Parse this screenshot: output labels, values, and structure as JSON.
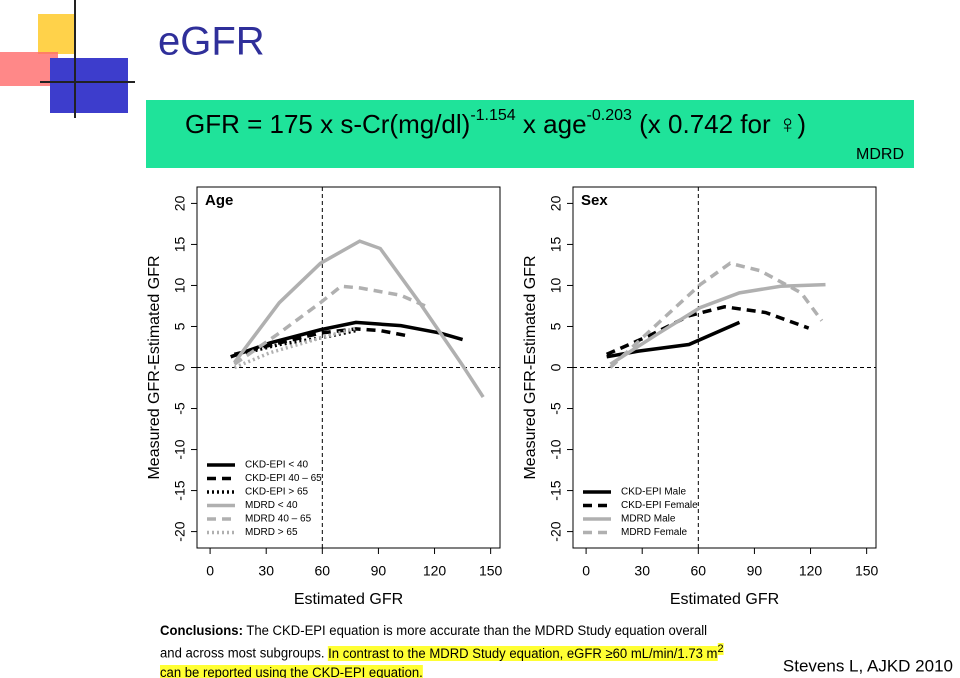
{
  "title": "eGFR",
  "formula": {
    "parts": [
      "GFR = 175 x s-Cr(mg/dl)",
      "-1.154",
      " x age",
      "-0.203",
      " (x 0.742 for ♀)"
    ],
    "note": "MDRD"
  },
  "chart_data": [
    {
      "type": "line",
      "panel_label": "Age",
      "x_label": "Estimated GFR",
      "y_label": "Measured GFR-Estimated GFR",
      "xlim": [
        -7,
        155
      ],
      "ylim": [
        -22,
        22
      ],
      "xticks": [
        0,
        30,
        60,
        90,
        120,
        150
      ],
      "yticks": [
        -20,
        -15,
        -10,
        -5,
        0,
        5,
        10,
        15,
        20
      ],
      "reference_lines": {
        "x": 60,
        "y": 0
      },
      "legend": "lower left",
      "series": [
        {
          "name": "CKD-EPI < 40",
          "color": "#000000",
          "line_style": "solid",
          "x": [
            11,
            32,
            59,
            78,
            102,
            123,
            135
          ],
          "values": [
            1.3,
            3,
            4.6,
            5.5,
            5.1,
            4.2,
            3.4
          ]
        },
        {
          "name": "CKD-EPI 40 – 65",
          "color": "#000000",
          "line_style": "dashed",
          "x": [
            13,
            37,
            59,
            78,
            91,
            107
          ],
          "values": [
            1.6,
            3,
            4.2,
            4.7,
            4.5,
            3.8
          ]
        },
        {
          "name": "CKD-EPI > 65",
          "color": "#000000",
          "line_style": "dotted",
          "x": [
            19,
            37,
            59,
            78
          ],
          "values": [
            1.8,
            2.8,
            3.6,
            4.5
          ]
        },
        {
          "name": "MDRD < 40",
          "color": "#b0b0b0",
          "line_style": "solid",
          "x": [
            13,
            37,
            59,
            80,
            91,
            112,
            134,
            146
          ],
          "values": [
            0.6,
            7.9,
            12.7,
            15.4,
            14.5,
            7.9,
            0.6,
            -3.6
          ]
        },
        {
          "name": "MDRD 40 – 65",
          "color": "#b0b0b0",
          "line_style": "dashed",
          "x": [
            13,
            37,
            59,
            70,
            80,
            102,
            115
          ],
          "values": [
            0.4,
            4.2,
            7.9,
            9.9,
            9.7,
            8.8,
            7.5
          ]
        },
        {
          "name": "MDRD > 65",
          "color": "#b0b0b0",
          "line_style": "dotted",
          "x": [
            13,
            32,
            59,
            78
          ],
          "values": [
            0,
            1.8,
            3.6,
            4.8
          ]
        }
      ]
    },
    {
      "type": "line",
      "panel_label": "Sex",
      "x_label": "Estimated GFR",
      "y_label": "Measured GFR-Estimated GFR",
      "xlim": [
        -7,
        155
      ],
      "ylim": [
        -22,
        22
      ],
      "xticks": [
        0,
        30,
        60,
        90,
        120,
        150
      ],
      "yticks": [
        -20,
        -15,
        -10,
        -5,
        0,
        5,
        10,
        15,
        20
      ],
      "reference_lines": {
        "x": 60,
        "y": 0
      },
      "legend": "lower left",
      "series": [
        {
          "name": "CKD-EPI Male",
          "color": "#000000",
          "line_style": "solid",
          "x": [
            11,
            28,
            55,
            82
          ],
          "values": [
            1.3,
            2,
            2.8,
            5.5
          ]
        },
        {
          "name": "CKD-EPI Female",
          "color": "#000000",
          "line_style": "dashed",
          "x": [
            11,
            34,
            55,
            74,
            96,
            119
          ],
          "values": [
            1.6,
            3.9,
            6.3,
            7.4,
            6.7,
            4.8
          ]
        },
        {
          "name": "MDRD Male",
          "color": "#b0b0b0",
          "line_style": "solid",
          "x": [
            13,
            39,
            61,
            82,
            104,
            128
          ],
          "values": [
            0.4,
            4.2,
            7.3,
            9.1,
            9.9,
            10.1
          ]
        },
        {
          "name": "MDRD Female",
          "color": "#b0b0b0",
          "line_style": "dashed",
          "x": [
            13,
            39,
            61,
            77,
            93,
            115,
            126
          ],
          "values": [
            0,
            5.5,
            10.1,
            12.7,
            11.8,
            9.1,
            5.7
          ]
        }
      ]
    }
  ],
  "conclusions": {
    "label": "Conclusions:",
    "text": " The CKD-EPI equation is more accurate than the MDRD Study equation overall and across most subgroups. ",
    "highlight": [
      "In contrast to the MDRD Study equation, eGFR ≥60 mL/min/1.73 m",
      "2",
      " can be reported using the CKD-EPI equation."
    ]
  },
  "citation": "Stevens L, AJKD 2010"
}
